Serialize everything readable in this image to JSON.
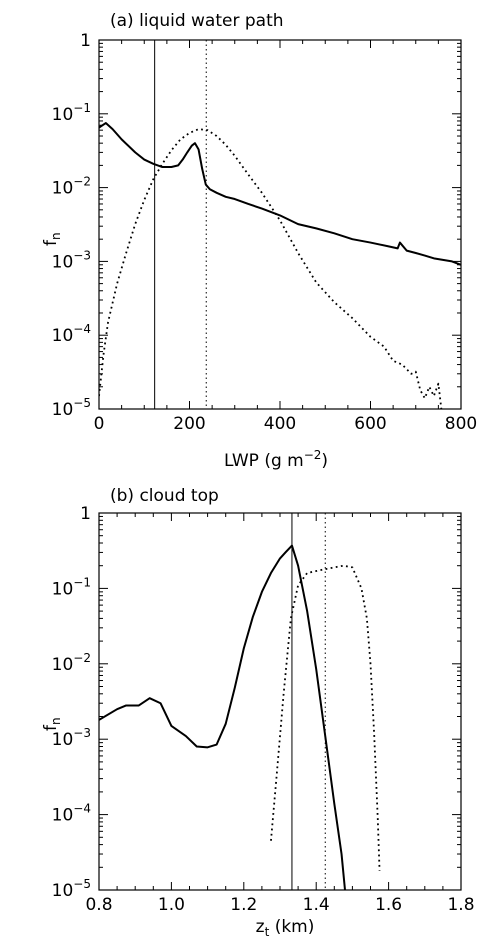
{
  "chart_data": [
    {
      "type": "line",
      "title": "(a) liquid water path",
      "xlabel_main": "LWP",
      "xlabel_unit": "(g m",
      "xlabel_exp": "−2",
      "xlabel_close": ")",
      "ylabel_main": "f",
      "ylabel_sub": "n",
      "xlim": [
        0,
        800
      ],
      "ylim": [
        1e-05,
        1
      ],
      "yscale": "log",
      "x_ticks": [
        {
          "value": 0,
          "label": "0"
        },
        {
          "value": 200,
          "label": "200"
        },
        {
          "value": 400,
          "label": "400"
        },
        {
          "value": 600,
          "label": "600"
        },
        {
          "value": 800,
          "label": "800"
        }
      ],
      "y_ticks": [
        {
          "value": 1e-05,
          "base": "10",
          "exp": "−5"
        },
        {
          "value": 0.0001,
          "base": "10",
          "exp": "−4"
        },
        {
          "value": 0.001,
          "base": "10",
          "exp": "−3"
        },
        {
          "value": 0.01,
          "base": "10",
          "exp": "−2"
        },
        {
          "value": 0.1,
          "base": "10",
          "exp": "−1"
        },
        {
          "value": 1,
          "base": "1",
          "exp": ""
        }
      ],
      "vlines": [
        {
          "x": 123,
          "style": "solid"
        },
        {
          "x": 237,
          "style": "dotted"
        }
      ],
      "series": [
        {
          "style": "solid",
          "x": [
            0,
            15,
            30,
            50,
            80,
            100,
            120,
            140,
            160,
            175,
            185,
            195,
            205,
            212,
            220,
            228,
            236,
            245,
            260,
            280,
            300,
            330,
            360,
            400,
            440,
            480,
            520,
            560,
            600,
            640,
            660,
            665,
            680,
            700,
            720,
            740,
            760,
            780,
            800
          ],
          "y": [
            0.065,
            0.075,
            0.062,
            0.045,
            0.03,
            0.024,
            0.021,
            0.019,
            0.019,
            0.02,
            0.024,
            0.03,
            0.037,
            0.04,
            0.033,
            0.018,
            0.011,
            0.0095,
            0.0085,
            0.0075,
            0.007,
            0.006,
            0.0052,
            0.0042,
            0.0032,
            0.0028,
            0.0024,
            0.002,
            0.0018,
            0.0016,
            0.0015,
            0.0018,
            0.0014,
            0.0013,
            0.0012,
            0.0011,
            0.00105,
            0.001,
            0.0009
          ]
        },
        {
          "style": "dotted",
          "x": [
            0,
            10,
            20,
            40,
            60,
            80,
            100,
            120,
            140,
            160,
            180,
            200,
            220,
            240,
            260,
            280,
            300,
            330,
            360,
            400,
            440,
            480,
            520,
            560,
            600,
            630,
            650,
            670,
            690,
            700,
            710,
            720,
            730,
            740,
            750,
            757
          ],
          "y": [
            1.5e-05,
            5.5e-05,
            0.00015,
            0.0005,
            0.0013,
            0.0032,
            0.0068,
            0.013,
            0.021,
            0.032,
            0.045,
            0.055,
            0.062,
            0.06,
            0.05,
            0.038,
            0.027,
            0.015,
            0.0085,
            0.0036,
            0.0013,
            0.00052,
            0.00028,
            0.00017,
            9.5e-05,
            7e-05,
            4.5e-05,
            4e-05,
            3e-05,
            3.2e-05,
            1.8e-05,
            1.4e-05,
            2e-05,
            1.5e-05,
            2.2e-05,
            9.5e-06
          ]
        }
      ]
    },
    {
      "type": "line",
      "title": "(b) cloud top",
      "xlabel_main": "z",
      "xlabel_sub": "t",
      "xlabel_unit": "(km)",
      "ylabel_main": "f",
      "ylabel_sub": "n",
      "xlim": [
        0.8,
        1.8
      ],
      "ylim": [
        1e-05,
        1
      ],
      "yscale": "log",
      "x_ticks": [
        {
          "value": 0.8,
          "label": "0.8"
        },
        {
          "value": 1.0,
          "label": "1.0"
        },
        {
          "value": 1.2,
          "label": "1.2"
        },
        {
          "value": 1.4,
          "label": "1.4"
        },
        {
          "value": 1.6,
          "label": "1.6"
        },
        {
          "value": 1.8,
          "label": "1.8"
        }
      ],
      "y_ticks": [
        {
          "value": 1e-05,
          "base": "10",
          "exp": "−5"
        },
        {
          "value": 0.0001,
          "base": "10",
          "exp": "−4"
        },
        {
          "value": 0.001,
          "base": "10",
          "exp": "−3"
        },
        {
          "value": 0.01,
          "base": "10",
          "exp": "−2"
        },
        {
          "value": 0.1,
          "base": "10",
          "exp": "−1"
        },
        {
          "value": 1,
          "base": "1",
          "exp": ""
        }
      ],
      "vlines": [
        {
          "x": 1.333,
          "style": "solid"
        },
        {
          "x": 1.425,
          "style": "dotted"
        }
      ],
      "series": [
        {
          "style": "solid",
          "x": [
            0.8,
            0.85,
            0.875,
            0.91,
            0.94,
            0.97,
            1.0,
            1.04,
            1.07,
            1.1,
            1.125,
            1.15,
            1.175,
            1.2,
            1.225,
            1.25,
            1.275,
            1.3,
            1.315,
            1.333,
            1.35,
            1.375,
            1.4,
            1.425,
            1.45,
            1.47,
            1.48
          ],
          "y": [
            0.0018,
            0.0025,
            0.0028,
            0.0028,
            0.0035,
            0.003,
            0.0015,
            0.0011,
            0.0008,
            0.00078,
            0.00085,
            0.0016,
            0.0048,
            0.016,
            0.042,
            0.09,
            0.16,
            0.25,
            0.3,
            0.37,
            0.2,
            0.05,
            0.0085,
            0.0011,
            0.00014,
            3e-05,
            9.5e-06
          ]
        },
        {
          "style": "dotted",
          "x": [
            1.275,
            1.29,
            1.31,
            1.33,
            1.35,
            1.375,
            1.4,
            1.425,
            1.45,
            1.475,
            1.5,
            1.525,
            1.54,
            1.55,
            1.56,
            1.57,
            1.575
          ],
          "y": [
            4.5e-05,
            0.0003,
            0.004,
            0.04,
            0.11,
            0.16,
            0.17,
            0.18,
            0.19,
            0.2,
            0.19,
            0.1,
            0.04,
            0.01,
            0.0012,
            9e-05,
            1.8e-05
          ]
        }
      ]
    }
  ]
}
